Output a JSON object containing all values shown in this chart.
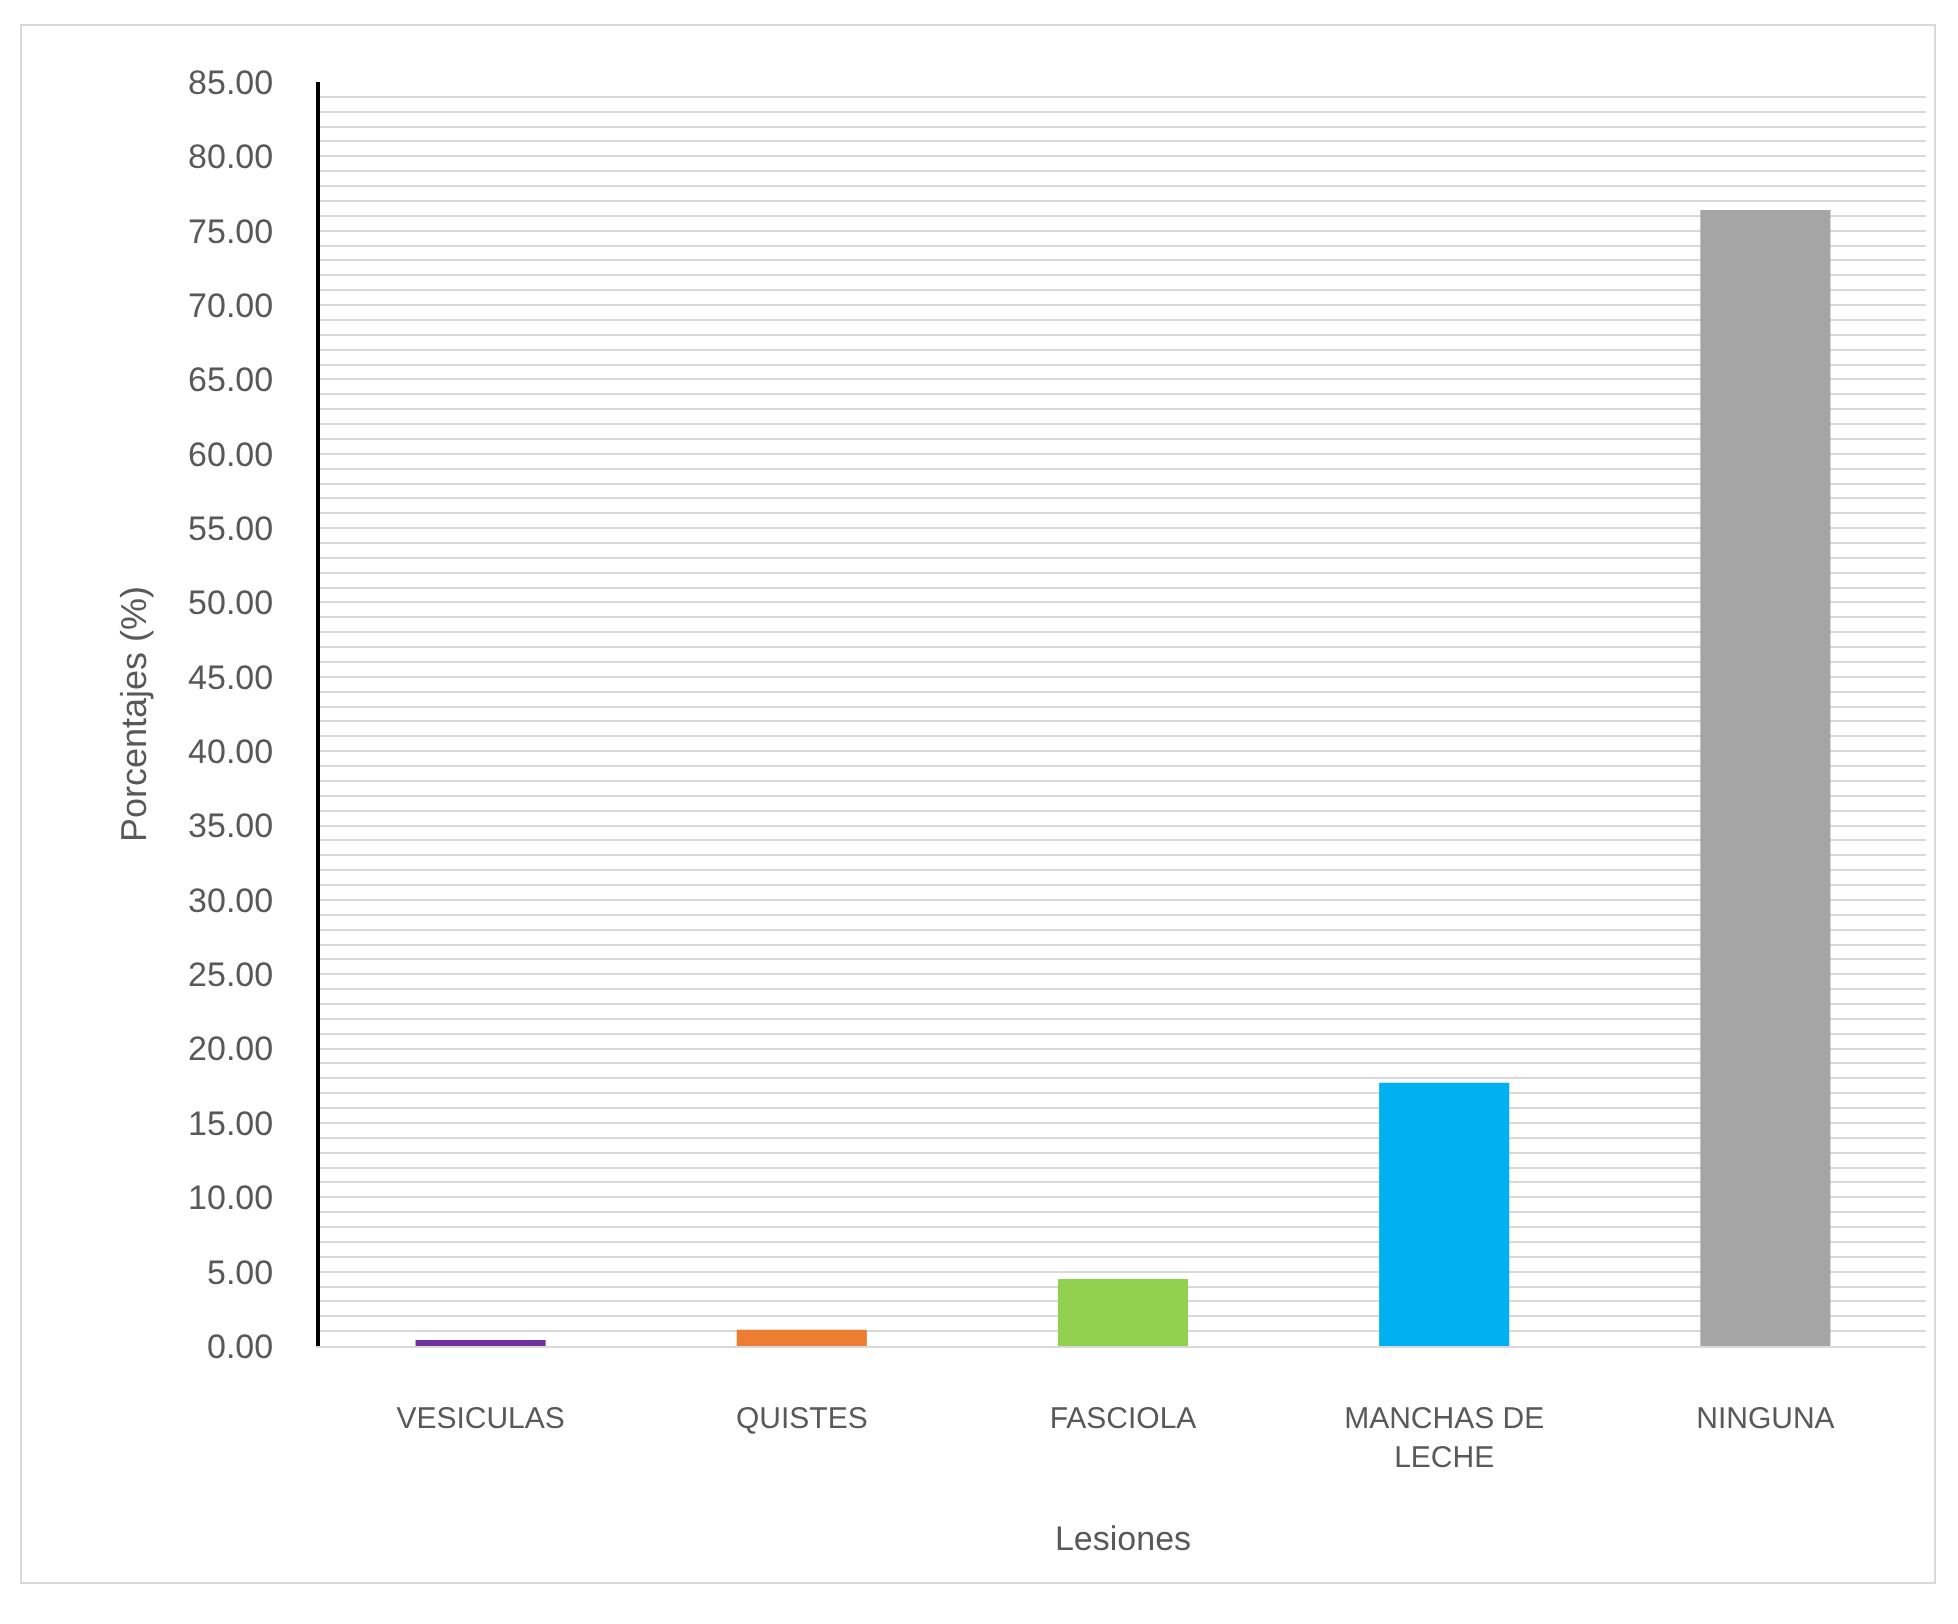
{
  "chart_data": {
    "type": "bar",
    "xlabel": "Lesiones",
    "ylabel": "Porcentajes (%)",
    "categories": [
      "VESICULAS",
      "QUISTES",
      "FASCIOLA",
      "MANCHAS DE LECHE",
      "NINGUNA"
    ],
    "values": [
      0.4,
      1.1,
      4.5,
      17.7,
      76.4
    ],
    "colors": [
      "#7030a0",
      "#ed7d31",
      "#92d050",
      "#00b0f0",
      "#a5a5a5"
    ],
    "ylim": [
      0,
      85
    ],
    "yticks": [
      {
        "value": 0,
        "label": "0.00"
      },
      {
        "value": 1,
        "label": null
      },
      {
        "value": 2,
        "label": null
      },
      {
        "value": 3,
        "label": null
      },
      {
        "value": 4,
        "label": null
      },
      {
        "value": 5,
        "label": "5.00"
      },
      {
        "value": 6,
        "label": null
      },
      {
        "value": 7,
        "label": null
      },
      {
        "value": 8,
        "label": null
      },
      {
        "value": 9,
        "label": null
      },
      {
        "value": 10,
        "label": "10.00"
      },
      {
        "value": 11,
        "label": null
      },
      {
        "value": 12,
        "label": null
      },
      {
        "value": 13,
        "label": null
      },
      {
        "value": 14,
        "label": null
      },
      {
        "value": 15,
        "label": "15.00"
      },
      {
        "value": 16,
        "label": null
      },
      {
        "value": 17,
        "label": null
      },
      {
        "value": 18,
        "label": null
      },
      {
        "value": 19,
        "label": null
      },
      {
        "value": 20,
        "label": "20.00"
      },
      {
        "value": 21,
        "label": null
      },
      {
        "value": 22,
        "label": null
      },
      {
        "value": 23,
        "label": null
      },
      {
        "value": 24,
        "label": null
      },
      {
        "value": 25,
        "label": "25.00"
      },
      {
        "value": 26,
        "label": null
      },
      {
        "value": 27,
        "label": null
      },
      {
        "value": 28,
        "label": null
      },
      {
        "value": 29,
        "label": null
      },
      {
        "value": 30,
        "label": "30.00"
      },
      {
        "value": 31,
        "label": null
      },
      {
        "value": 32,
        "label": null
      },
      {
        "value": 33,
        "label": null
      },
      {
        "value": 34,
        "label": null
      },
      {
        "value": 35,
        "label": "35.00"
      },
      {
        "value": 36,
        "label": null
      },
      {
        "value": 37,
        "label": null
      },
      {
        "value": 38,
        "label": null
      },
      {
        "value": 39,
        "label": null
      },
      {
        "value": 40,
        "label": "40.00"
      },
      {
        "value": 41,
        "label": null
      },
      {
        "value": 42,
        "label": null
      },
      {
        "value": 43,
        "label": null
      },
      {
        "value": 44,
        "label": null
      },
      {
        "value": 45,
        "label": "45.00"
      },
      {
        "value": 46,
        "label": null
      },
      {
        "value": 47,
        "label": null
      },
      {
        "value": 48,
        "label": null
      },
      {
        "value": 49,
        "label": null
      },
      {
        "value": 50,
        "label": "50.00"
      },
      {
        "value": 51,
        "label": null
      },
      {
        "value": 52,
        "label": null
      },
      {
        "value": 53,
        "label": null
      },
      {
        "value": 54,
        "label": null
      },
      {
        "value": 55,
        "label": "55.00"
      },
      {
        "value": 56,
        "label": null
      },
      {
        "value": 57,
        "label": null
      },
      {
        "value": 58,
        "label": null
      },
      {
        "value": 59,
        "label": null
      },
      {
        "value": 60,
        "label": "60.00"
      },
      {
        "value": 61,
        "label": null
      },
      {
        "value": 62,
        "label": null
      },
      {
        "value": 63,
        "label": null
      },
      {
        "value": 64,
        "label": null
      },
      {
        "value": 65,
        "label": "65.00"
      },
      {
        "value": 66,
        "label": null
      },
      {
        "value": 67,
        "label": null
      },
      {
        "value": 68,
        "label": null
      },
      {
        "value": 69,
        "label": null
      },
      {
        "value": 70,
        "label": "70.00"
      },
      {
        "value": 71,
        "label": null
      },
      {
        "value": 72,
        "label": null
      },
      {
        "value": 73,
        "label": null
      },
      {
        "value": 74,
        "label": null
      },
      {
        "value": 75,
        "label": "75.00"
      },
      {
        "value": 76,
        "label": null
      },
      {
        "value": 77,
        "label": null
      },
      {
        "value": 78,
        "label": null
      },
      {
        "value": 79,
        "label": null
      },
      {
        "value": 80,
        "label": "80.00"
      },
      {
        "value": 81,
        "label": null
      },
      {
        "value": 82,
        "label": null
      },
      {
        "value": 83,
        "label": null
      },
      {
        "value": 84,
        "label": null
      },
      {
        "value": 85,
        "label": "85.00"
      }
    ],
    "grid": "y"
  }
}
